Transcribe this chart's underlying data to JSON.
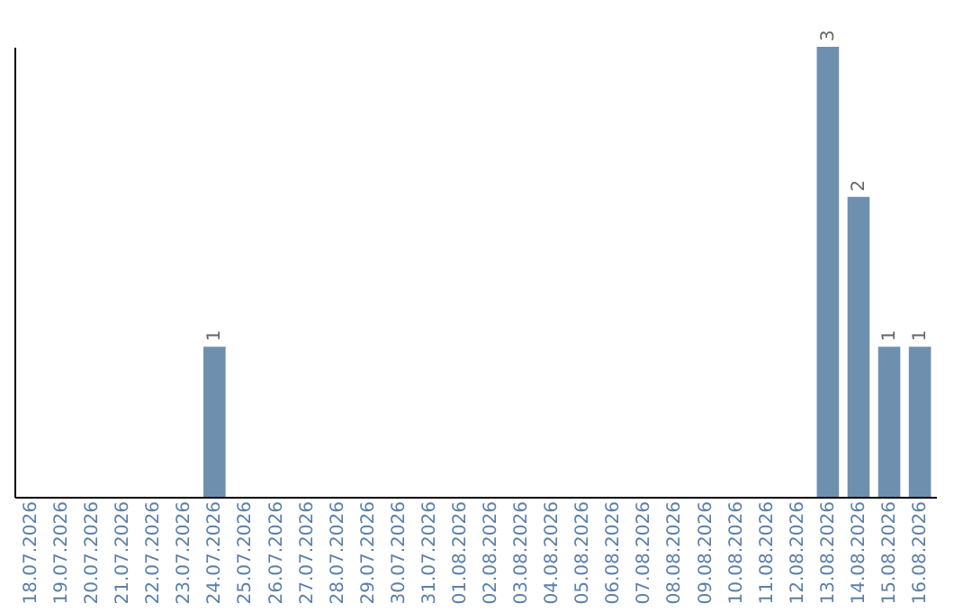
{
  "chart_data": {
    "type": "bar",
    "categories": [
      "18.07.2026",
      "19.07.2026",
      "20.07.2026",
      "21.07.2026",
      "22.07.2026",
      "23.07.2026",
      "24.07.2026",
      "25.07.2026",
      "26.07.2026",
      "27.07.2026",
      "28.07.2026",
      "29.07.2026",
      "30.07.2026",
      "31.07.2026",
      "01.08.2026",
      "02.08.2026",
      "03.08.2026",
      "04.08.2026",
      "05.08.2026",
      "06.08.2026",
      "07.08.2026",
      "08.08.2026",
      "09.08.2026",
      "10.08.2026",
      "11.08.2026",
      "12.08.2026",
      "13.08.2026",
      "14.08.2026",
      "15.08.2026",
      "16.08.2026"
    ],
    "values": [
      0,
      0,
      0,
      0,
      0,
      0,
      1,
      0,
      0,
      0,
      0,
      0,
      0,
      0,
      0,
      0,
      0,
      0,
      0,
      0,
      0,
      0,
      0,
      0,
      0,
      0,
      3,
      2,
      1,
      1
    ],
    "value_labels": [
      null,
      null,
      null,
      null,
      null,
      null,
      "1",
      null,
      null,
      null,
      null,
      null,
      null,
      null,
      null,
      null,
      null,
      null,
      null,
      null,
      null,
      null,
      null,
      null,
      null,
      null,
      "3",
      "2",
      "1",
      "1"
    ],
    "color": "#6f8fae",
    "ylim": [
      0,
      3
    ],
    "tick_labels": "x",
    "grid": false
  }
}
